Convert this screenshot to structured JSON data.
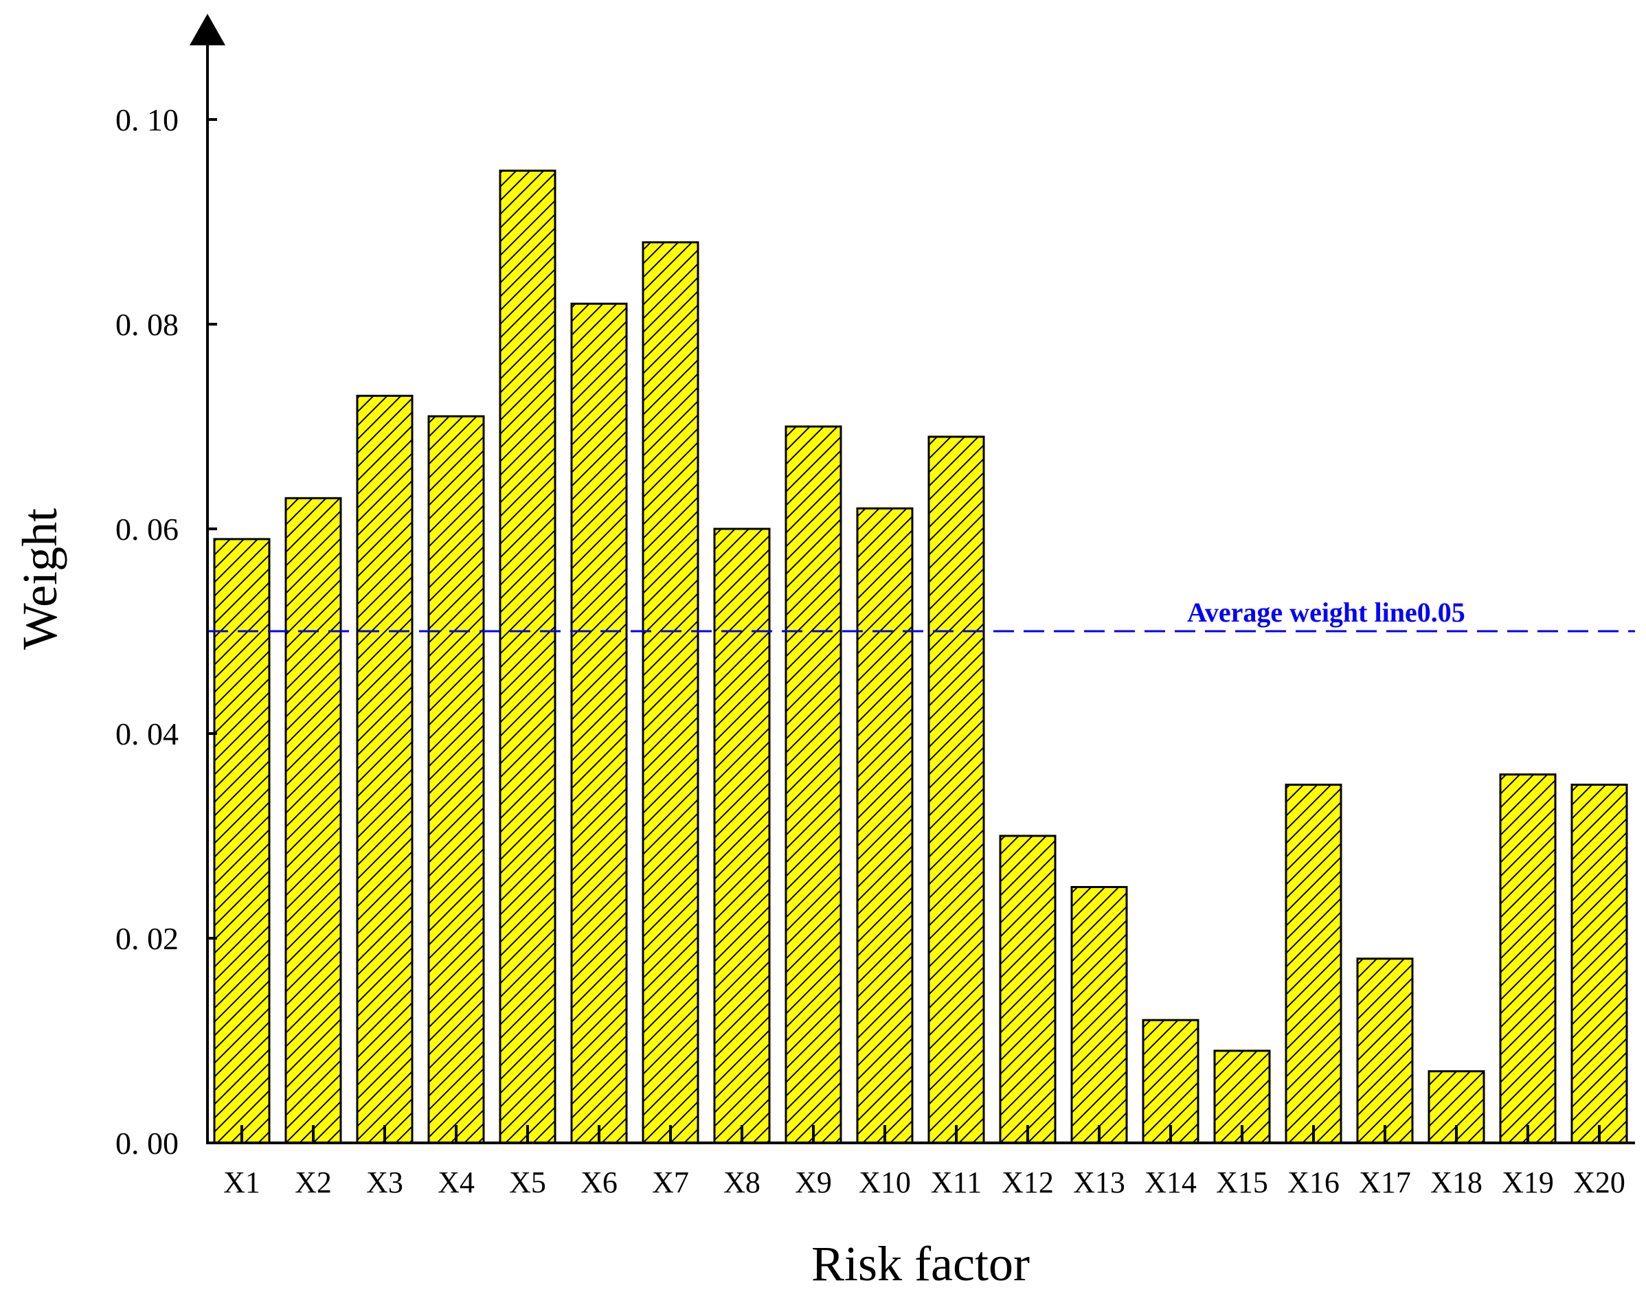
{
  "colors": {
    "bar_fill": "#ffff00",
    "bar_stroke": "#000000",
    "hatch": "#000000",
    "reference_line": "#0000ff"
  },
  "chart_data": {
    "type": "bar",
    "title": "",
    "xlabel": "Risk factor",
    "ylabel": "Weight",
    "categories": [
      "X1",
      "X2",
      "X3",
      "X4",
      "X5",
      "X6",
      "X7",
      "X8",
      "X9",
      "X10",
      "X11",
      "X12",
      "X13",
      "X14",
      "X15",
      "X16",
      "X17",
      "X18",
      "X19",
      "X20"
    ],
    "values": [
      0.059,
      0.063,
      0.073,
      0.071,
      0.095,
      0.082,
      0.088,
      0.06,
      0.07,
      0.062,
      0.069,
      0.03,
      0.025,
      0.012,
      0.009,
      0.035,
      0.018,
      0.007,
      0.036,
      0.035
    ],
    "ylim": [
      0,
      0.11
    ],
    "yticks": [
      0.0,
      0.02,
      0.04,
      0.06,
      0.08,
      0.1
    ],
    "ytick_labels": [
      "0. 00",
      "0. 02",
      "0. 04",
      "0. 06",
      "0. 08",
      "0. 10"
    ],
    "reference_line": {
      "value": 0.05,
      "label": "Average weight line0.05",
      "style": "dashed"
    },
    "grid": false,
    "legend": "none"
  }
}
